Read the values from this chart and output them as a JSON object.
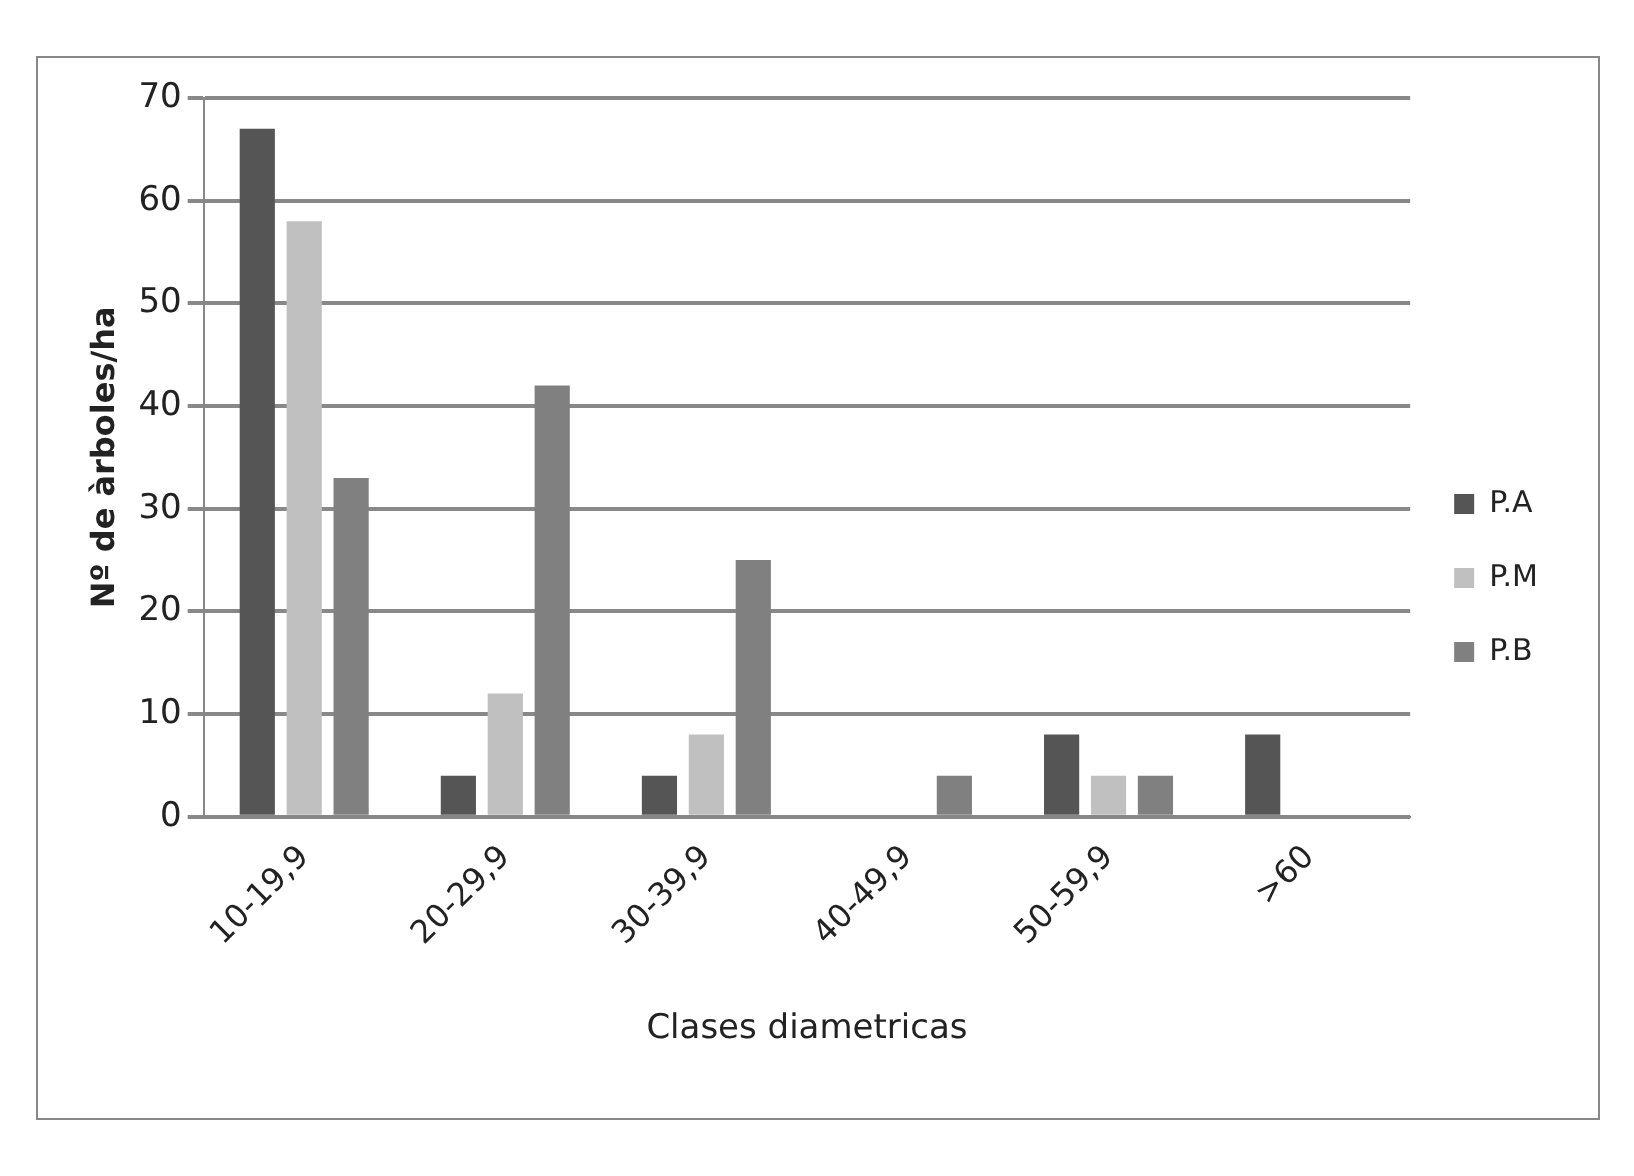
{
  "chart_data": {
    "type": "bar",
    "xlabel": "Clases diametricas",
    "ylabel": "Nº de àrboles/ha",
    "categories": [
      "10-19,9",
      "20-29,9",
      "30-39,9",
      "40-49,9",
      "50-59,9",
      ">60"
    ],
    "series": [
      {
        "name": "P.A",
        "color": "#555555",
        "values": [
          67,
          4,
          4,
          0,
          8,
          8
        ]
      },
      {
        "name": "P.M",
        "color": "#c0c0c0",
        "values": [
          58,
          12,
          8,
          0,
          4,
          0
        ]
      },
      {
        "name": "P.B",
        "color": "#808080",
        "values": [
          33,
          42,
          25,
          4,
          4,
          0
        ]
      }
    ],
    "ylim": [
      0,
      70
    ],
    "yticks": [
      0,
      10,
      20,
      30,
      40,
      50,
      60,
      70
    ],
    "grid": "y",
    "legend": "right"
  }
}
